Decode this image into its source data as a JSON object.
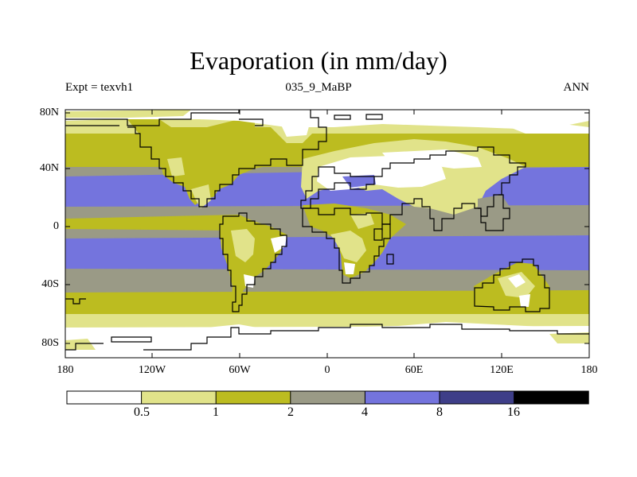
{
  "title": "Evaporation (in mm/day)",
  "left_label": "Expt = texvh1",
  "center_label": "035_9_MaBP",
  "right_label": "ANN",
  "lat_ticks": [
    "80N",
    "40N",
    "0",
    "40S",
    "80S"
  ],
  "lon_ticks": [
    "180",
    "120W",
    "60W",
    "0",
    "60E",
    "120E",
    "180"
  ],
  "colorbar": {
    "labels": [
      "0.5",
      "1",
      "2",
      "4",
      "8",
      "16"
    ],
    "colors": [
      "#ffffff",
      "#e1e38a",
      "#bcbc20",
      "#9a9a86",
      "#7474dd",
      "#3e3e88",
      "#000000"
    ]
  },
  "map_colors": {
    "white": "#ffffff",
    "light_yellow": "#e1e38a",
    "olive": "#bcbc20",
    "gray": "#9a9a86",
    "blue": "#7474dd"
  }
}
